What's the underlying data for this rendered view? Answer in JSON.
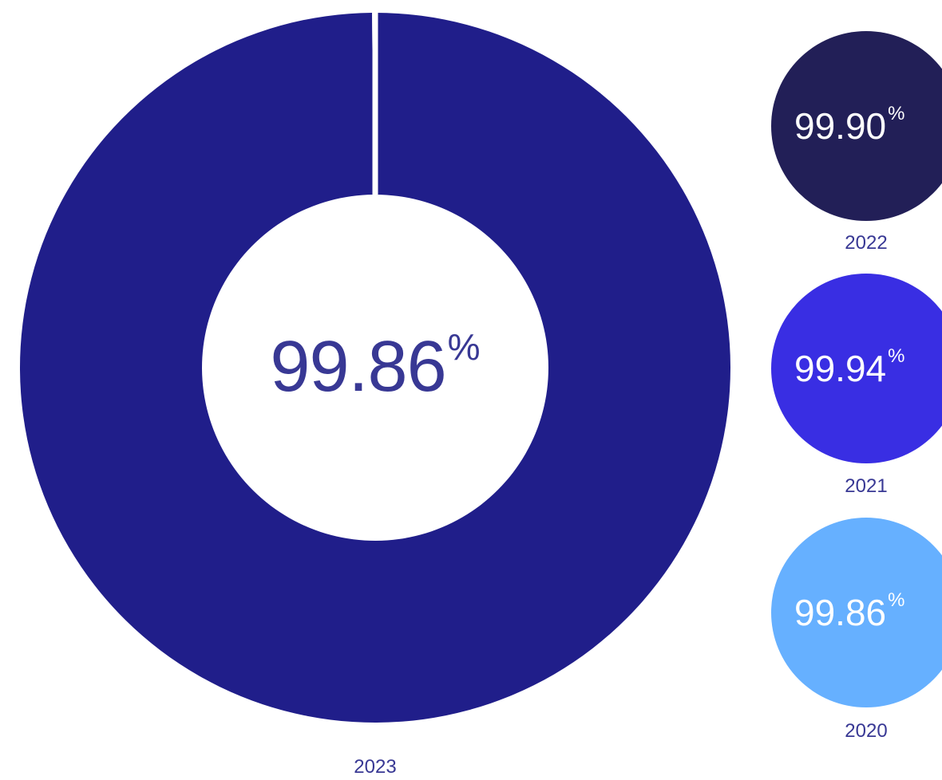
{
  "chart_data": {
    "type": "pie",
    "main": {
      "year": "2023",
      "value": 99.86,
      "value_text": "99.86",
      "unit": "%",
      "color": "#201E8A",
      "remainder_color": "#FFFFFF"
    },
    "others": [
      {
        "year": "2022",
        "value": 99.9,
        "value_text": "99.90",
        "unit": "%",
        "color": "#221F57"
      },
      {
        "year": "2021",
        "value": 99.94,
        "value_text": "99.94",
        "unit": "%",
        "color": "#392EE3"
      },
      {
        "year": "2020",
        "value": 99.86,
        "value_text": "99.86",
        "unit": "%",
        "color": "#66B0FF"
      }
    ],
    "label_color": "#383894"
  }
}
